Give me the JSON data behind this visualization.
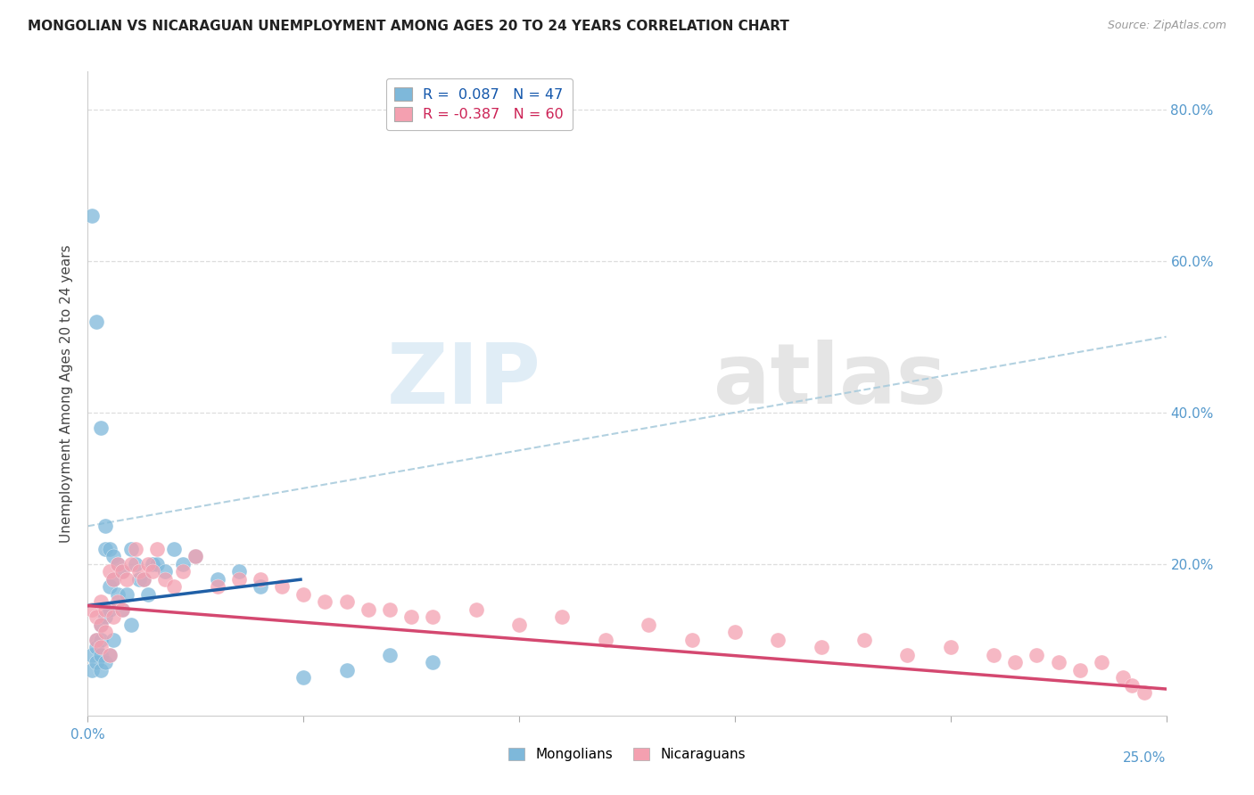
{
  "title": "MONGOLIAN VS NICARAGUAN UNEMPLOYMENT AMONG AGES 20 TO 24 YEARS CORRELATION CHART",
  "source": "Source: ZipAtlas.com",
  "ylabel": "Unemployment Among Ages 20 to 24 years",
  "xlim": [
    0.0,
    0.25
  ],
  "ylim": [
    0.0,
    0.85
  ],
  "right_yticks": [
    0.2,
    0.4,
    0.6,
    0.8
  ],
  "right_yticklabels": [
    "20.0%",
    "40.0%",
    "60.0%",
    "80.0%"
  ],
  "mongolian_color": "#7EB8DA",
  "nicaraguan_color": "#F4A0B0",
  "mongolian_line_color": "#1F5FA6",
  "nicaraguan_line_color": "#D44870",
  "dashed_line_color": "#aaccdd",
  "legend_R_mongolian": "R =  0.087   N = 47",
  "legend_R_nicaraguan": "R = -0.387   N = 60",
  "mongolian_x": [
    0.001,
    0.001,
    0.001,
    0.002,
    0.002,
    0.002,
    0.002,
    0.003,
    0.003,
    0.003,
    0.003,
    0.003,
    0.004,
    0.004,
    0.004,
    0.004,
    0.005,
    0.005,
    0.005,
    0.005,
    0.006,
    0.006,
    0.006,
    0.007,
    0.007,
    0.008,
    0.008,
    0.009,
    0.01,
    0.01,
    0.011,
    0.012,
    0.013,
    0.014,
    0.015,
    0.016,
    0.018,
    0.02,
    0.022,
    0.025,
    0.03,
    0.035,
    0.04,
    0.05,
    0.06,
    0.07,
    0.08
  ],
  "mongolian_y": [
    0.66,
    0.08,
    0.06,
    0.52,
    0.1,
    0.09,
    0.07,
    0.38,
    0.12,
    0.1,
    0.08,
    0.06,
    0.25,
    0.22,
    0.13,
    0.07,
    0.22,
    0.17,
    0.14,
    0.08,
    0.21,
    0.18,
    0.1,
    0.2,
    0.16,
    0.19,
    0.14,
    0.16,
    0.22,
    0.12,
    0.2,
    0.18,
    0.18,
    0.16,
    0.2,
    0.2,
    0.19,
    0.22,
    0.2,
    0.21,
    0.18,
    0.19,
    0.17,
    0.05,
    0.06,
    0.08,
    0.07
  ],
  "nicaraguan_x": [
    0.001,
    0.002,
    0.002,
    0.003,
    0.003,
    0.003,
    0.004,
    0.004,
    0.005,
    0.005,
    0.006,
    0.006,
    0.007,
    0.007,
    0.008,
    0.008,
    0.009,
    0.01,
    0.011,
    0.012,
    0.013,
    0.014,
    0.015,
    0.016,
    0.018,
    0.02,
    0.022,
    0.025,
    0.03,
    0.035,
    0.04,
    0.045,
    0.05,
    0.055,
    0.06,
    0.065,
    0.07,
    0.075,
    0.08,
    0.09,
    0.1,
    0.11,
    0.12,
    0.13,
    0.14,
    0.15,
    0.16,
    0.17,
    0.18,
    0.19,
    0.2,
    0.21,
    0.215,
    0.22,
    0.225,
    0.23,
    0.235,
    0.24,
    0.242,
    0.245
  ],
  "nicaraguan_y": [
    0.14,
    0.13,
    0.1,
    0.15,
    0.12,
    0.09,
    0.14,
    0.11,
    0.19,
    0.08,
    0.18,
    0.13,
    0.2,
    0.15,
    0.19,
    0.14,
    0.18,
    0.2,
    0.22,
    0.19,
    0.18,
    0.2,
    0.19,
    0.22,
    0.18,
    0.17,
    0.19,
    0.21,
    0.17,
    0.18,
    0.18,
    0.17,
    0.16,
    0.15,
    0.15,
    0.14,
    0.14,
    0.13,
    0.13,
    0.14,
    0.12,
    0.13,
    0.1,
    0.12,
    0.1,
    0.11,
    0.1,
    0.09,
    0.1,
    0.08,
    0.09,
    0.08,
    0.07,
    0.08,
    0.07,
    0.06,
    0.07,
    0.05,
    0.04,
    0.03
  ],
  "watermark_zip": "ZIP",
  "watermark_atlas": "atlas",
  "background_color": "#ffffff",
  "grid_color": "#dddddd"
}
